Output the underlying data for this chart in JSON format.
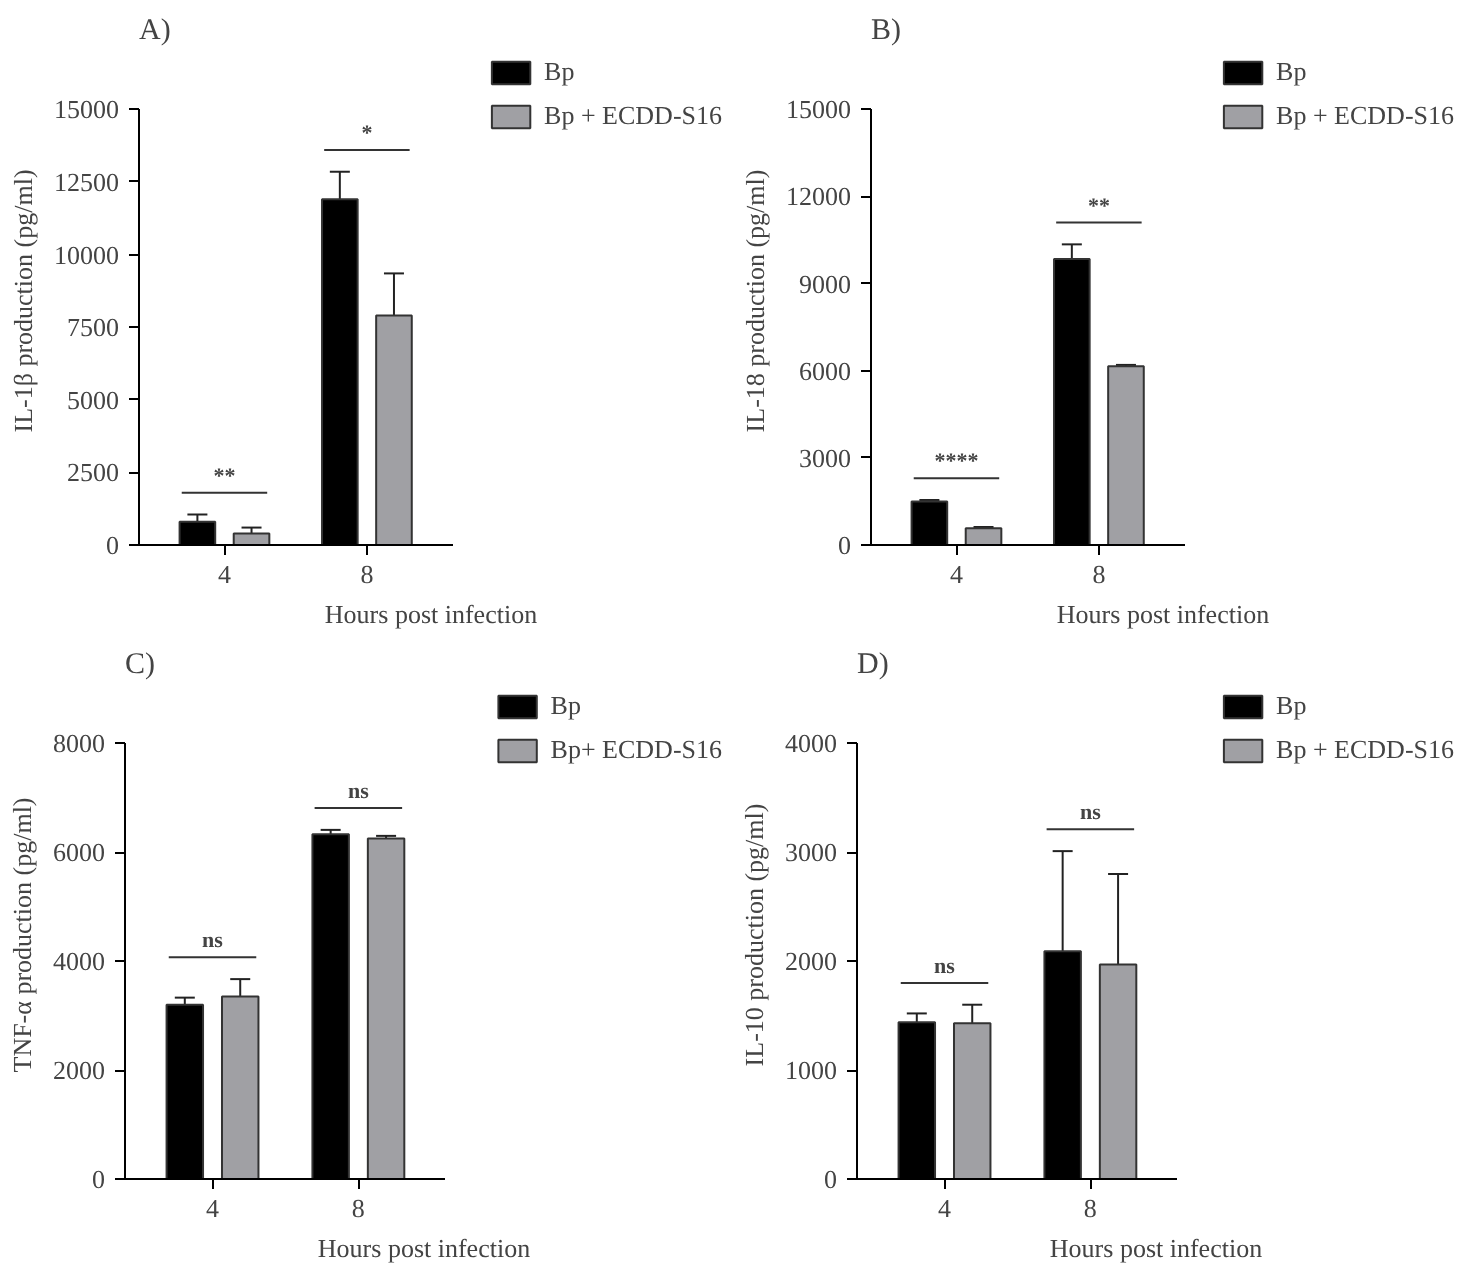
{
  "chart_data": [
    {
      "type": "bar",
      "title": "A)",
      "xlabel": "Hours post infection",
      "ylabel": "IL-1β production (pg/ml)",
      "categories": [
        "4",
        "8"
      ],
      "series": [
        {
          "name": "Bp",
          "color": "#000000",
          "values": [
            800,
            11900
          ],
          "errors": [
            250,
            950
          ]
        },
        {
          "name": "Bp + ECDD-S16",
          "color": "#a0a0a4",
          "values": [
            400,
            7900
          ],
          "errors": [
            200,
            1450
          ]
        }
      ],
      "ylim": [
        0,
        15000
      ],
      "yticks": [
        0,
        2500,
        5000,
        7500,
        10000,
        12500,
        15000
      ],
      "annotations": [
        "**",
        "*"
      ],
      "legend": "top right",
      "grid": false
    },
    {
      "type": "bar",
      "title": "B)",
      "xlabel": "Hours post infection",
      "ylabel": "IL-18 production (pg/ml)",
      "categories": [
        "4",
        "8"
      ],
      "series": [
        {
          "name": "Bp",
          "color": "#000000",
          "values": [
            1500,
            9850
          ],
          "errors": [
            50,
            500
          ]
        },
        {
          "name": "Bp + ECDD-S16",
          "color": "#a0a0a4",
          "values": [
            580,
            6150
          ],
          "errors": [
            40,
            50
          ]
        }
      ],
      "ylim": [
        0,
        15000
      ],
      "yticks": [
        0,
        3000,
        6000,
        9000,
        12000,
        15000
      ],
      "annotations": [
        "****",
        "**"
      ],
      "legend": "top right",
      "grid": false
    },
    {
      "type": "bar",
      "title": "C)",
      "xlabel": "Hours post infection",
      "ylabel": "TNF-α production (pg/ml)",
      "categories": [
        "4",
        "8"
      ],
      "series": [
        {
          "name": "Bp",
          "color": "#000000",
          "values": [
            3200,
            6330
          ],
          "errors": [
            130,
            80
          ]
        },
        {
          "name": "Bp+ ECDD-S16",
          "color": "#a0a0a4",
          "values": [
            3350,
            6250
          ],
          "errors": [
            320,
            50
          ]
        }
      ],
      "ylim": [
        0,
        8000
      ],
      "yticks": [
        0,
        2000,
        4000,
        6000,
        8000
      ],
      "annotations": [
        "ns",
        "ns"
      ],
      "legend": "top right",
      "grid": false
    },
    {
      "type": "bar",
      "title": "D)",
      "xlabel": "Hours post infection",
      "ylabel": "IL-10 production (pg/ml)",
      "categories": [
        "4",
        "8"
      ],
      "series": [
        {
          "name": "Bp",
          "color": "#000000",
          "values": [
            1440,
            2090
          ],
          "errors": [
            80,
            920
          ]
        },
        {
          "name": "Bp + ECDD-S16",
          "color": "#a0a0a4",
          "values": [
            1430,
            1970
          ],
          "errors": [
            170,
            830
          ]
        }
      ],
      "ylim": [
        0,
        4000
      ],
      "yticks": [
        0,
        1000,
        2000,
        3000,
        4000
      ],
      "annotations": [
        "ns",
        "ns"
      ],
      "legend": "top right",
      "grid": false
    }
  ]
}
